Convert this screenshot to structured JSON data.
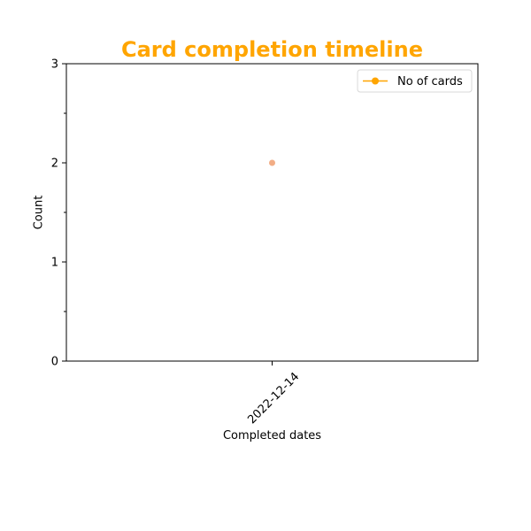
{
  "colors": {
    "title": "#ffa500",
    "line": "#ffa500",
    "point": "#f2ad85",
    "axis": "#000000",
    "background": "#ffffff"
  },
  "chart_data": {
    "type": "line",
    "title": "Card completion timeline",
    "xlabel": "Completed dates",
    "ylabel": "Count",
    "x": [
      "2022-12-14"
    ],
    "series": [
      {
        "name": "No of cards",
        "values": [
          2
        ]
      }
    ],
    "ylim": [
      0,
      3
    ],
    "yticks": [
      0,
      1,
      2,
      3
    ],
    "y_minor_ticks": [
      0.5,
      1.5,
      2.5
    ],
    "grid": false,
    "legend": {
      "position": "top-right",
      "marker": "circle"
    }
  }
}
